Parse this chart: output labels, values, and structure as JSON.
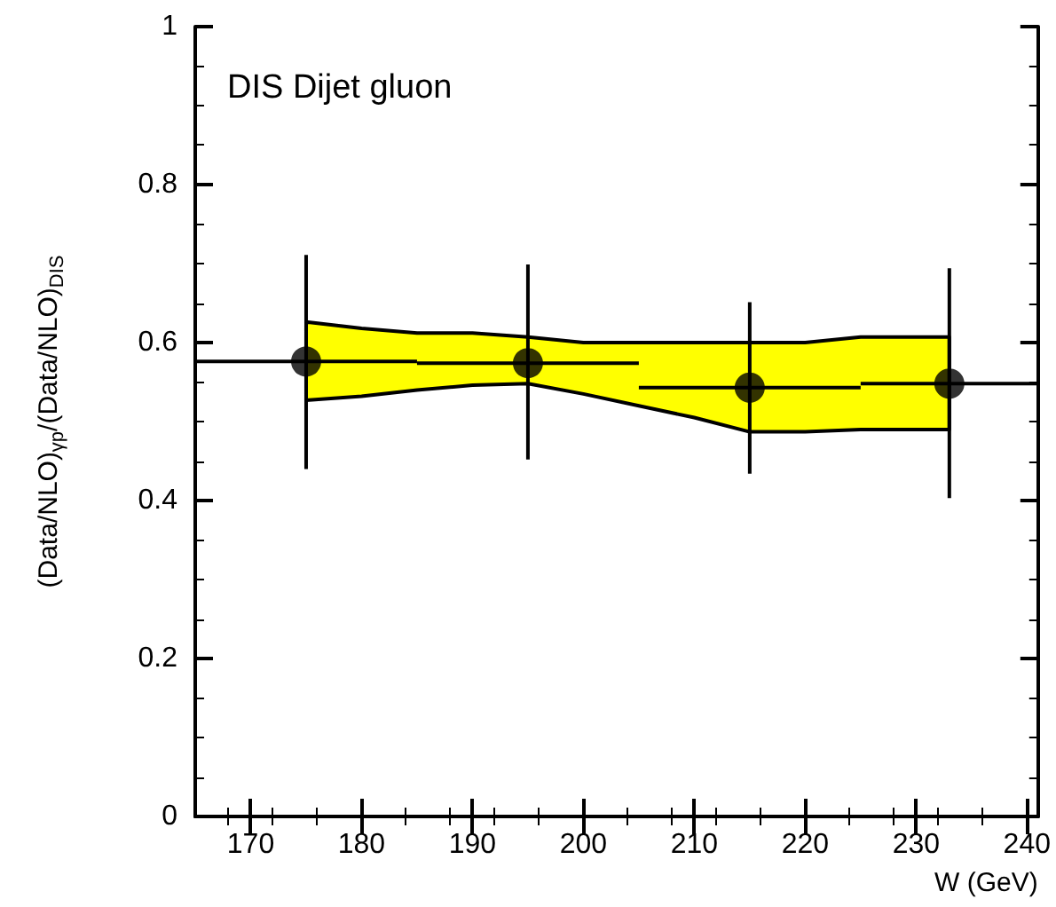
{
  "chart_data": {
    "type": "scatter",
    "xlabel": "W (GeV)",
    "ylabel": "(Data/NLO)$_{γp}$/(Data/NLO)$_{DIS}$",
    "annotations": [
      "DIS Dijet gluon"
    ],
    "x": [
      175,
      195,
      215,
      233
    ],
    "series": [
      {
        "color": "#000000",
        "values": [
          0.576,
          0.574,
          0.543,
          0.548
        ],
        "errors": [
          [
            0.44,
            0.711
          ],
          [
            0.452,
            0.699
          ],
          [
            0.434,
            0.651
          ],
          [
            0.403,
            0.694
          ]
        ],
        "xerrors": [
          [
            165,
            185
          ],
          [
            185,
            205
          ],
          [
            205,
            225
          ],
          [
            225,
            241
          ]
        ]
      },
      {
        "type": "area",
        "color": "#ffff00",
        "x": [
          175,
          180,
          185,
          190,
          195,
          200,
          205,
          210,
          215,
          220,
          225,
          230,
          233
        ],
        "values": [
          null,
          null,
          null,
          null,
          null,
          null,
          null,
          null,
          null,
          null,
          null,
          null,
          null
        ],
        "lower": [
          0.527,
          0.532,
          0.54,
          0.546,
          0.548,
          0.535,
          0.52,
          0.505,
          0.487,
          0.487,
          0.49,
          0.49,
          0.49
        ],
        "upper": [
          0.626,
          0.618,
          0.612,
          0.612,
          0.607,
          0.6,
          0.6,
          0.6,
          0.6,
          0.6,
          0.607,
          0.607,
          0.607
        ]
      }
    ],
    "xlim": [
      165,
      241
    ],
    "xticks": [
      170,
      180,
      190,
      200,
      210,
      220,
      230,
      240
    ],
    "ylim": [
      0,
      1
    ],
    "yticks": [
      0,
      0.2,
      0.4,
      0.6,
      0.8,
      1
    ],
    "marker": "circle"
  }
}
